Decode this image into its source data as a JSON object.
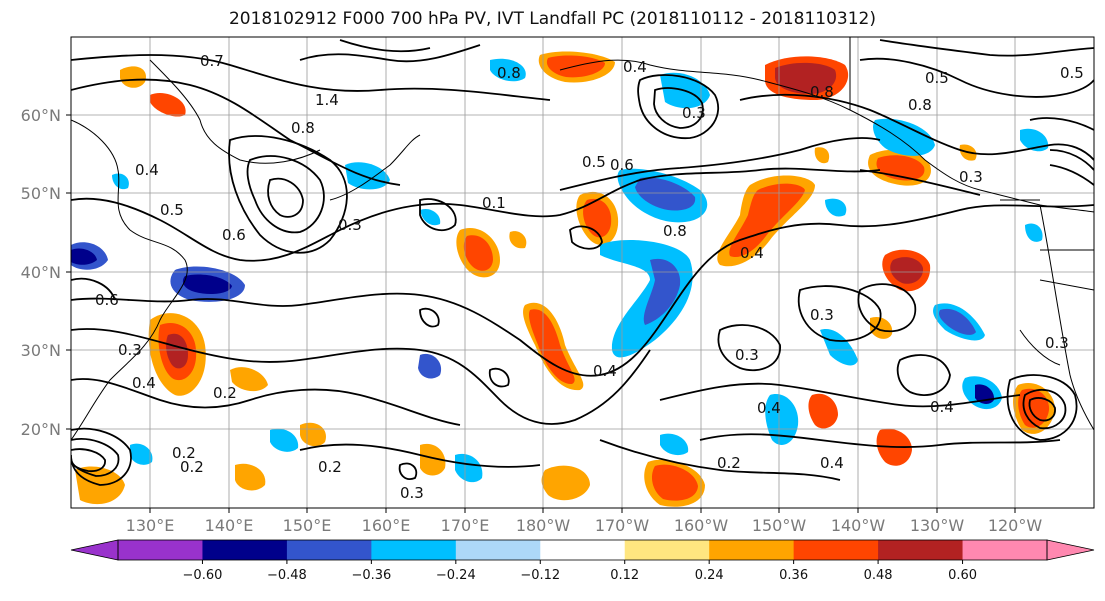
{
  "title": "2018102912 F000 700 hPa PV, IVT Landfall PC (2018110112 - 2018110312)",
  "lat_labels": [
    "60°N",
    "50°N",
    "40°N",
    "30°N",
    "20°N"
  ],
  "lon_labels": [
    "130°E",
    "140°E",
    "150°E",
    "160°E",
    "170°E",
    "180°W",
    "170°W",
    "160°W",
    "150°W",
    "140°W",
    "130°W",
    "120°W"
  ],
  "colorbar": {
    "ticks": [
      "−0.60",
      "−0.48",
      "−0.36",
      "−0.24",
      "−0.12",
      "0.12",
      "0.24",
      "0.36",
      "0.48",
      "0.60"
    ],
    "colors": [
      "#9932CC",
      "#00008B",
      "#3355CC",
      "#00BFFF",
      "#ADD8F8",
      "#FFFFFF",
      "#FFE680",
      "#FFA500",
      "#FF4500",
      "#B22222",
      "#FF88B0"
    ]
  },
  "contour_labels": [
    "0.7",
    "1.4",
    "0.8",
    "0.4",
    "0.5",
    "0.3",
    "0.6",
    "0.2",
    "0.1",
    "0.8",
    "0.6",
    "0.4",
    "0.3",
    "0.2",
    "0.4",
    "0.3",
    "0.4",
    "0.2",
    "0.3",
    "0.8",
    "0.5",
    "0.4",
    "0.8",
    "0.6",
    "0.5",
    "0.3",
    "0.2",
    "0.5",
    "0.8",
    "0.3",
    "0.4",
    "0.3",
    "0.4",
    "0.2",
    "0.4",
    "0.3"
  ]
}
